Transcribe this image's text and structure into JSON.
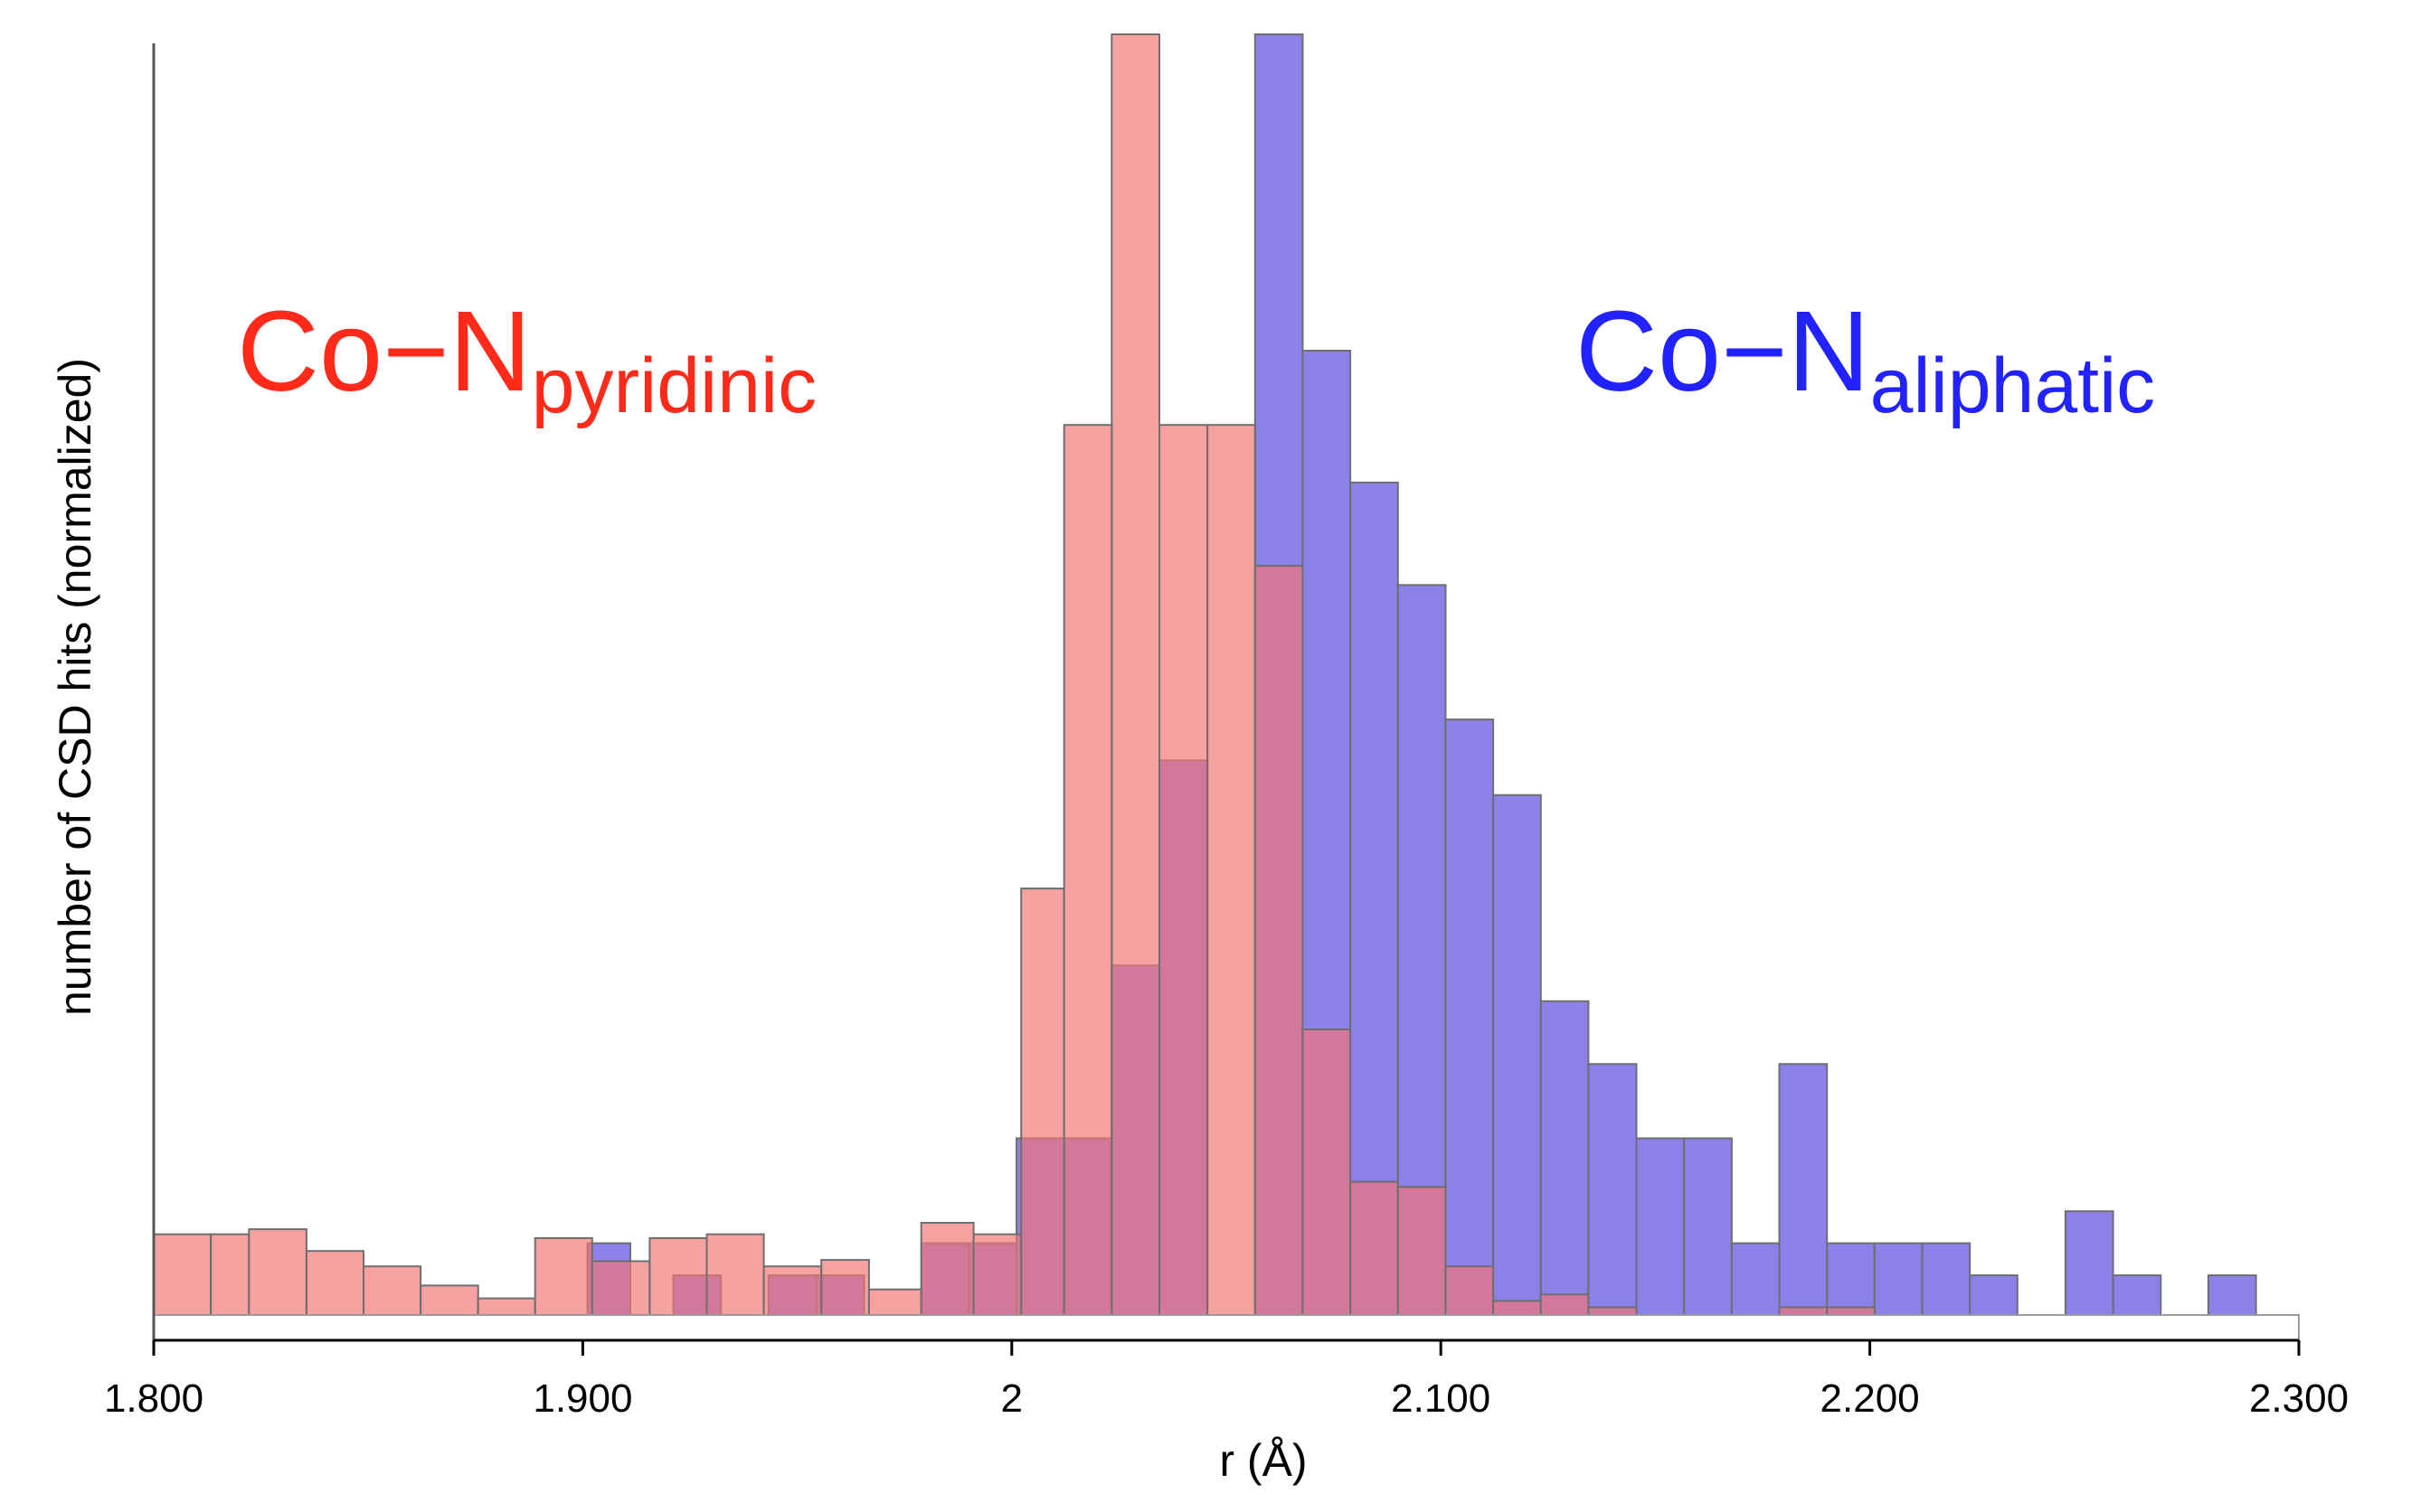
{
  "chart_data": {
    "type": "bar",
    "title": "",
    "xlabel": "r (Å)",
    "ylabel": "number of CSD hits (normalized)",
    "xlim": [
      1.8,
      2.3
    ],
    "ylim": [
      0,
      100
    ],
    "x_tick_labels": [
      "1.800",
      "1.900",
      "2",
      "2.100",
      "2.200",
      "2.300"
    ],
    "x_ticks": [
      1.8,
      1.9,
      2.0,
      2.1,
      2.2,
      2.3
    ],
    "grid": false,
    "series": [
      {
        "name_main": "Co−N",
        "name_sub": "aliphatic",
        "color": "#7b6fe6",
        "bars": [
          {
            "x0": 1.9011,
            "x1": 1.9111,
            "y": 5.6
          },
          {
            "x0": 1.9211,
            "x1": 1.9322,
            "y": 3.1
          },
          {
            "x0": 1.9433,
            "x1": 1.9544,
            "y": 3.1
          },
          {
            "x0": 1.9544,
            "x1": 1.9656,
            "y": 3.1
          },
          {
            "x0": 1.9789,
            "x1": 1.99,
            "y": 5.6
          },
          {
            "x0": 1.99,
            "x1": 2.0011,
            "y": 5.6
          },
          {
            "x0": 2.0011,
            "x1": 2.0122,
            "y": 13.8
          },
          {
            "x0": 2.0122,
            "x1": 2.0233,
            "y": 13.8
          },
          {
            "x0": 2.0233,
            "x1": 2.0344,
            "y": 27.3
          },
          {
            "x0": 2.0344,
            "x1": 2.0456,
            "y": 43.3
          },
          {
            "x0": 2.0567,
            "x1": 2.0678,
            "y": 100.0
          },
          {
            "x0": 2.0678,
            "x1": 2.0789,
            "y": 75.3
          },
          {
            "x0": 2.0789,
            "x1": 2.09,
            "y": 65.0
          },
          {
            "x0": 2.09,
            "x1": 2.1011,
            "y": 57.0
          },
          {
            "x0": 2.1011,
            "x1": 2.1122,
            "y": 46.5
          },
          {
            "x0": 2.1122,
            "x1": 2.1233,
            "y": 40.6
          },
          {
            "x0": 2.1233,
            "x1": 2.1344,
            "y": 24.5
          },
          {
            "x0": 2.1344,
            "x1": 2.1456,
            "y": 19.6
          },
          {
            "x0": 2.1456,
            "x1": 2.1567,
            "y": 13.8
          },
          {
            "x0": 2.1567,
            "x1": 2.1678,
            "y": 13.8
          },
          {
            "x0": 2.1678,
            "x1": 2.1789,
            "y": 5.6
          },
          {
            "x0": 2.1789,
            "x1": 2.19,
            "y": 19.6
          },
          {
            "x0": 2.19,
            "x1": 2.2011,
            "y": 5.6
          },
          {
            "x0": 2.2011,
            "x1": 2.2122,
            "y": 5.6
          },
          {
            "x0": 2.2122,
            "x1": 2.2233,
            "y": 5.6
          },
          {
            "x0": 2.2233,
            "x1": 2.2344,
            "y": 3.1
          },
          {
            "x0": 2.2456,
            "x1": 2.2567,
            "y": 8.1
          },
          {
            "x0": 2.2567,
            "x1": 2.2678,
            "y": 3.1
          },
          {
            "x0": 2.2789,
            "x1": 2.29,
            "y": 3.1
          }
        ]
      },
      {
        "name_main": "Co−N",
        "name_sub": "pyridinic",
        "color": "#f47474",
        "bars": [
          {
            "x0": 1.8,
            "x1": 1.8133,
            "y": 6.3
          },
          {
            "x0": 1.8133,
            "x1": 1.8222,
            "y": 6.3
          },
          {
            "x0": 1.8222,
            "x1": 1.8356,
            "y": 6.7
          },
          {
            "x0": 1.8356,
            "x1": 1.8489,
            "y": 5.0
          },
          {
            "x0": 1.8489,
            "x1": 1.8622,
            "y": 3.8
          },
          {
            "x0": 1.8622,
            "x1": 1.8756,
            "y": 2.3
          },
          {
            "x0": 1.8756,
            "x1": 1.8889,
            "y": 1.3
          },
          {
            "x0": 1.8889,
            "x1": 1.9022,
            "y": 6.0
          },
          {
            "x0": 1.9022,
            "x1": 1.9156,
            "y": 4.2
          },
          {
            "x0": 1.9156,
            "x1": 1.9289,
            "y": 6.0
          },
          {
            "x0": 1.9289,
            "x1": 1.9422,
            "y": 6.3
          },
          {
            "x0": 1.9422,
            "x1": 1.9556,
            "y": 3.8
          },
          {
            "x0": 1.9556,
            "x1": 1.9667,
            "y": 4.3
          },
          {
            "x0": 1.9667,
            "x1": 1.9789,
            "y": 2.0
          },
          {
            "x0": 1.9789,
            "x1": 1.9911,
            "y": 7.2
          },
          {
            "x0": 1.9911,
            "x1": 2.0022,
            "y": 6.3
          },
          {
            "x0": 2.0022,
            "x1": 2.0122,
            "y": 33.3
          },
          {
            "x0": 2.0122,
            "x1": 2.0233,
            "y": 69.5
          },
          {
            "x0": 2.0233,
            "x1": 2.0344,
            "y": 100.0
          },
          {
            "x0": 2.0344,
            "x1": 2.0456,
            "y": 69.5
          },
          {
            "x0": 2.0456,
            "x1": 2.0567,
            "y": 69.5
          },
          {
            "x0": 2.0567,
            "x1": 2.0678,
            "y": 58.5
          },
          {
            "x0": 2.0678,
            "x1": 2.0789,
            "y": 22.3
          },
          {
            "x0": 2.0789,
            "x1": 2.09,
            "y": 10.4
          },
          {
            "x0": 2.09,
            "x1": 2.1011,
            "y": 10.0
          },
          {
            "x0": 2.1011,
            "x1": 2.1122,
            "y": 3.8
          },
          {
            "x0": 2.1122,
            "x1": 2.1233,
            "y": 1.1
          },
          {
            "x0": 2.1233,
            "x1": 2.1344,
            "y": 1.6
          },
          {
            "x0": 2.1344,
            "x1": 2.1456,
            "y": 0.6
          },
          {
            "x0": 2.1789,
            "x1": 2.19,
            "y": 0.6
          },
          {
            "x0": 2.19,
            "x1": 2.2011,
            "y": 0.6
          }
        ]
      }
    ]
  }
}
